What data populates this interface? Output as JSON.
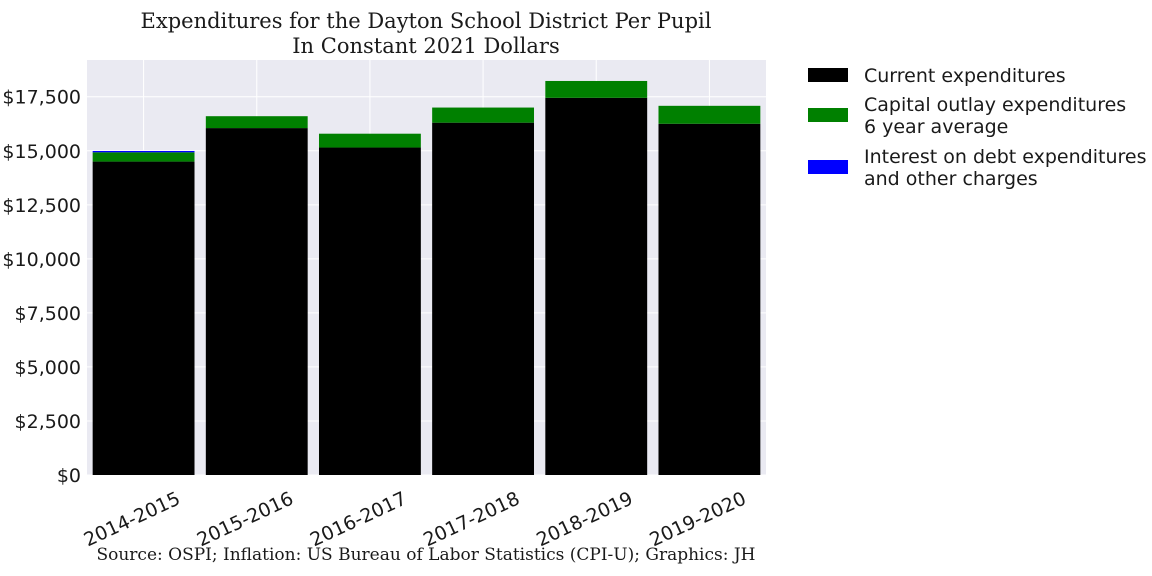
{
  "chart_data": {
    "type": "bar",
    "stacked": true,
    "title": "Expenditures for the Dayton School District Per Pupil",
    "subtitle": "In Constant 2021 Dollars",
    "source": "Source: OSPI; Inflation: US Bureau of Labor Statistics (CPI-U); Graphics: JH",
    "categories": [
      "2014-2015",
      "2015-2016",
      "2016-2017",
      "2017-2018",
      "2018-2019",
      "2019-2020"
    ],
    "series": [
      {
        "name": "Current expenditures",
        "color": "#000000",
        "values": [
          14500,
          16050,
          15150,
          16300,
          17450,
          16250
        ]
      },
      {
        "name": "Capital outlay expenditures\n6 year average",
        "color": "#008000",
        "values": [
          430,
          550,
          640,
          700,
          780,
          830
        ]
      },
      {
        "name": "Interest on debt expenditures\nand other charges",
        "color": "#0000ff",
        "values": [
          60,
          0,
          0,
          0,
          0,
          0
        ]
      }
    ],
    "ylim": [
      0,
      19200
    ],
    "yticks": [
      0,
      2500,
      5000,
      7500,
      10000,
      12500,
      15000,
      17500
    ],
    "ytick_labels": [
      "$0",
      "$2,500",
      "$5,000",
      "$7,500",
      "$10,000",
      "$12,500",
      "$15,000",
      "$17,500"
    ],
    "grid": true,
    "legend_position": "outside-right",
    "background_color": "#eaeaf2"
  }
}
